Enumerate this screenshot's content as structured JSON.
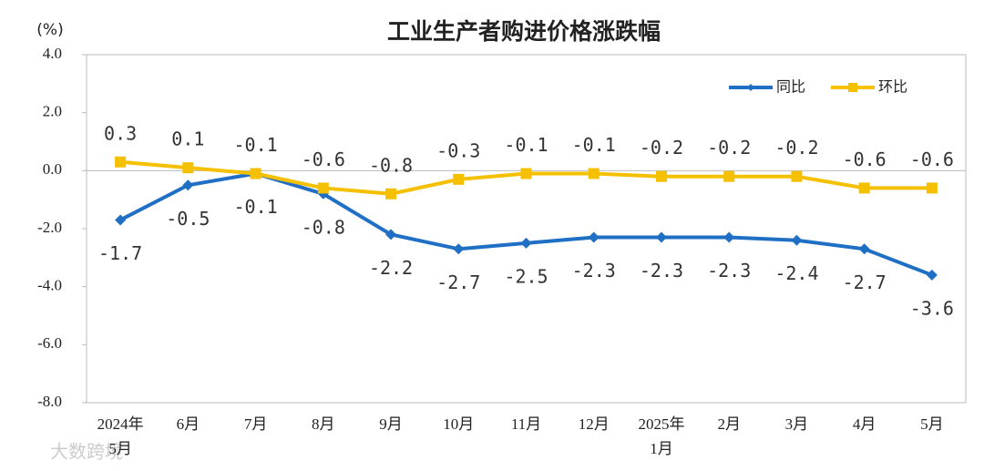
{
  "chart_data": {
    "type": "line",
    "title": "工业生产者购进价格涨跌幅",
    "y_unit": "(%)",
    "watermark": "大数跨境",
    "categories": [
      [
        "2024年",
        "5月"
      ],
      "6月",
      "7月",
      "8月",
      "9月",
      "10月",
      "11月",
      "12月",
      [
        "2025年",
        "1月"
      ],
      "2月",
      "3月",
      "4月",
      "5月"
    ],
    "series": [
      {
        "name": "同比",
        "color": "#1f6fc5",
        "values": [
          -1.7,
          -0.5,
          -0.1,
          -0.8,
          -2.2,
          -2.7,
          -2.5,
          -2.3,
          -2.3,
          -2.3,
          -2.4,
          -2.7,
          -3.6
        ]
      },
      {
        "name": "环比",
        "color": "#f5c000",
        "values": [
          0.3,
          0.1,
          -0.1,
          -0.6,
          -0.8,
          -0.3,
          -0.1,
          -0.1,
          -0.2,
          -0.2,
          -0.2,
          -0.6,
          -0.6
        ]
      }
    ],
    "ylim": [
      -8,
      4
    ],
    "yticks": [
      {
        "value": -8,
        "label": "-8.0"
      },
      {
        "value": -6,
        "label": "-6.0"
      },
      {
        "value": -4,
        "label": "-4.0"
      },
      {
        "value": -2,
        "label": "-2.0"
      },
      {
        "value": 0,
        "label": "0.0"
      },
      {
        "value": 2,
        "label": "2.0"
      },
      {
        "value": 4,
        "label": "4.0"
      }
    ]
  }
}
